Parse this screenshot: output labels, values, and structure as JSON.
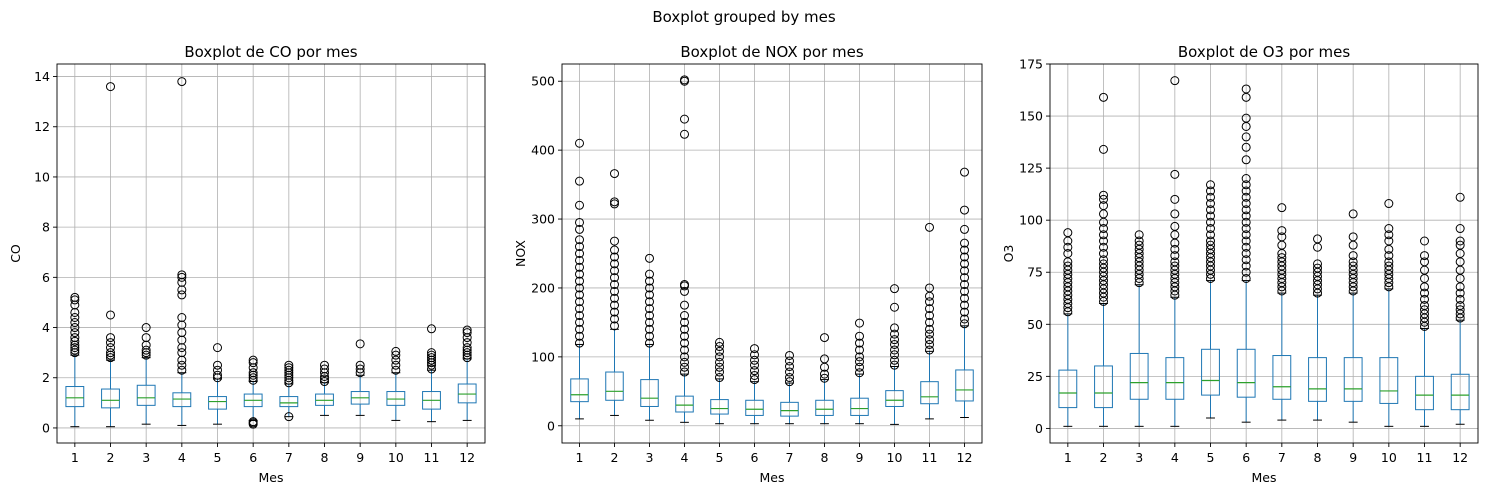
{
  "suptitle": "Boxplot grouped by mes",
  "colors": {
    "box": "#1f77b4",
    "median": "#2ca02c",
    "grid": "#b0b0b0",
    "axes": "#000000"
  },
  "chart_data": [
    {
      "type": "boxplot",
      "title": "Boxplot de CO por mes",
      "xlabel": "Mes",
      "ylabel": "CO",
      "categories": [
        "1",
        "2",
        "3",
        "4",
        "5",
        "6",
        "7",
        "8",
        "9",
        "10",
        "11",
        "12"
      ],
      "ylim": [
        -0.6,
        14.5
      ],
      "yticks": [
        0,
        2,
        4,
        6,
        8,
        10,
        12,
        14
      ],
      "grid": true,
      "boxes": [
        {
          "whislo": 0.05,
          "q1": 0.85,
          "med": 1.2,
          "q3": 1.65,
          "whishi": 2.9,
          "fliers": [
            3.0,
            3.1,
            3.2,
            3.3,
            3.45,
            3.6,
            3.8,
            4.0,
            4.2,
            4.4,
            4.6,
            4.9,
            5.1,
            5.2
          ]
        },
        {
          "whislo": 0.05,
          "q1": 0.8,
          "med": 1.1,
          "q3": 1.55,
          "whishi": 2.7,
          "fliers": [
            2.8,
            2.9,
            3.0,
            3.2,
            3.4,
            3.6,
            4.5,
            13.6
          ]
        },
        {
          "whislo": 0.15,
          "q1": 0.9,
          "med": 1.2,
          "q3": 1.7,
          "whishi": 2.8,
          "fliers": [
            2.9,
            3.0,
            3.1,
            3.3,
            3.6,
            4.0
          ]
        },
        {
          "whislo": 0.1,
          "q1": 0.85,
          "med": 1.15,
          "q3": 1.4,
          "whishi": 2.2,
          "fliers": [
            2.3,
            2.5,
            2.7,
            3.0,
            3.2,
            3.5,
            3.8,
            4.1,
            4.4,
            5.3,
            5.5,
            5.8,
            6.0,
            6.1,
            13.8
          ]
        },
        {
          "whislo": 0.15,
          "q1": 0.75,
          "med": 1.05,
          "q3": 1.25,
          "whishi": 1.95,
          "fliers": [
            2.0,
            2.1,
            2.3,
            2.5,
            3.2
          ]
        },
        {
          "whislo": 0.3,
          "q1": 0.85,
          "med": 1.1,
          "q3": 1.35,
          "whishi": 1.85,
          "fliers": [
            0.15,
            0.2,
            0.25,
            1.9,
            2.0,
            2.1,
            2.2,
            2.4,
            2.6,
            2.7
          ]
        },
        {
          "whislo": 0.45,
          "q1": 0.85,
          "med": 1.0,
          "q3": 1.25,
          "whishi": 1.75,
          "fliers": [
            0.45,
            1.8,
            1.9,
            2.0,
            2.1,
            2.2,
            2.3,
            2.4,
            2.5
          ]
        },
        {
          "whislo": 0.5,
          "q1": 0.9,
          "med": 1.1,
          "q3": 1.35,
          "whishi": 1.8,
          "fliers": [
            1.85,
            1.95,
            2.05,
            2.2,
            2.35,
            2.5
          ]
        },
        {
          "whislo": 0.5,
          "q1": 0.95,
          "med": 1.2,
          "q3": 1.45,
          "whishi": 2.1,
          "fliers": [
            2.2,
            2.35,
            2.5,
            3.35
          ]
        },
        {
          "whislo": 0.3,
          "q1": 0.9,
          "med": 1.15,
          "q3": 1.45,
          "whishi": 2.2,
          "fliers": [
            2.3,
            2.5,
            2.7,
            2.9,
            3.05
          ]
        },
        {
          "whislo": 0.25,
          "q1": 0.75,
          "med": 1.1,
          "q3": 1.45,
          "whishi": 2.3,
          "fliers": [
            2.35,
            2.5,
            2.6,
            2.7,
            2.8,
            2.9,
            3.0,
            3.95
          ]
        },
        {
          "whislo": 0.3,
          "q1": 1.0,
          "med": 1.35,
          "q3": 1.75,
          "whishi": 2.75,
          "fliers": [
            2.8,
            2.9,
            3.0,
            3.1,
            3.2,
            3.4,
            3.6,
            3.8,
            3.9
          ]
        }
      ]
    },
    {
      "type": "boxplot",
      "title": "Boxplot de NOX por mes",
      "xlabel": "Mes",
      "ylabel": "NOX",
      "categories": [
        "1",
        "2",
        "3",
        "4",
        "5",
        "6",
        "7",
        "8",
        "9",
        "10",
        "11",
        "12"
      ],
      "ylim": [
        -25,
        525
      ],
      "yticks": [
        0,
        100,
        200,
        300,
        400,
        500
      ],
      "grid": true,
      "boxes": [
        {
          "whislo": 10,
          "q1": 35,
          "med": 45,
          "q3": 68,
          "whishi": 118,
          "fliers": [
            120,
            130,
            140,
            150,
            160,
            170,
            180,
            190,
            200,
            210,
            220,
            230,
            240,
            250,
            260,
            270,
            285,
            295,
            320,
            355,
            410
          ]
        },
        {
          "whislo": 15,
          "q1": 37,
          "med": 50,
          "q3": 78,
          "whishi": 140,
          "fliers": [
            145,
            155,
            165,
            175,
            185,
            195,
            205,
            215,
            225,
            235,
            245,
            255,
            268,
            322,
            325,
            366
          ]
        },
        {
          "whislo": 8,
          "q1": 28,
          "med": 40,
          "q3": 67,
          "whishi": 118,
          "fliers": [
            120,
            130,
            140,
            150,
            160,
            170,
            180,
            190,
            200,
            210,
            220,
            243
          ]
        },
        {
          "whislo": 5,
          "q1": 20,
          "med": 30,
          "q3": 43,
          "whishi": 75,
          "fliers": [
            78,
            85,
            92,
            100,
            110,
            120,
            130,
            140,
            150,
            160,
            175,
            195,
            203,
            205,
            423,
            445,
            500,
            502
          ]
        },
        {
          "whislo": 3,
          "q1": 17,
          "med": 25,
          "q3": 38,
          "whishi": 68,
          "fliers": [
            70,
            78,
            85,
            92,
            100,
            108,
            115,
            121
          ]
        },
        {
          "whislo": 3,
          "q1": 15,
          "med": 24,
          "q3": 37,
          "whishi": 64,
          "fliers": [
            67,
            73,
            80,
            88,
            95,
            103,
            112
          ]
        },
        {
          "whislo": 3,
          "q1": 14,
          "med": 22,
          "q3": 34,
          "whishi": 62,
          "fliers": [
            64,
            70,
            78,
            86,
            94,
            102
          ]
        },
        {
          "whislo": 3,
          "q1": 15,
          "med": 24,
          "q3": 37,
          "whishi": 67,
          "fliers": [
            69,
            75,
            85,
            97,
            128
          ]
        },
        {
          "whislo": 3,
          "q1": 15,
          "med": 25,
          "q3": 40,
          "whishi": 75,
          "fliers": [
            77,
            85,
            93,
            100,
            110,
            120,
            130,
            149
          ]
        },
        {
          "whislo": 2,
          "q1": 28,
          "med": 37,
          "q3": 51,
          "whishi": 86,
          "fliers": [
            88,
            95,
            103,
            110,
            118,
            125,
            133,
            142,
            172,
            199
          ]
        },
        {
          "whislo": 10,
          "q1": 32,
          "med": 42,
          "q3": 64,
          "whishi": 108,
          "fliers": [
            110,
            118,
            125,
            133,
            140,
            150,
            160,
            170,
            180,
            188,
            200,
            288
          ]
        },
        {
          "whislo": 12,
          "q1": 36,
          "med": 52,
          "q3": 81,
          "whishi": 145,
          "fliers": [
            148,
            155,
            165,
            175,
            185,
            195,
            205,
            215,
            225,
            235,
            245,
            255,
            265,
            285,
            313,
            368
          ]
        }
      ]
    },
    {
      "type": "boxplot",
      "title": "Boxplot de O3 por mes",
      "xlabel": "Mes",
      "ylabel": "O3",
      "categories": [
        "1",
        "2",
        "3",
        "4",
        "5",
        "6",
        "7",
        "8",
        "9",
        "10",
        "11",
        "12"
      ],
      "ylim": [
        -7,
        175
      ],
      "yticks": [
        0,
        25,
        50,
        75,
        100,
        125,
        150,
        175
      ],
      "grid": true,
      "boxes": [
        {
          "whislo": 1,
          "q1": 10,
          "med": 17,
          "q3": 28,
          "whishi": 55,
          "fliers": [
            56,
            58,
            60,
            62,
            64,
            66,
            68,
            70,
            72,
            74,
            76,
            78,
            80,
            84,
            87,
            90,
            94
          ]
        },
        {
          "whislo": 1,
          "q1": 10,
          "med": 17,
          "q3": 30,
          "whishi": 60,
          "fliers": [
            61,
            63,
            65,
            67,
            69,
            71,
            73,
            75,
            77,
            79,
            81,
            84,
            87,
            90,
            93,
            96,
            99,
            103,
            107,
            110,
            112,
            134,
            159
          ]
        },
        {
          "whislo": 1,
          "q1": 14,
          "med": 22,
          "q3": 36,
          "whishi": 69,
          "fliers": [
            70,
            72,
            74,
            76,
            78,
            80,
            82,
            84,
            86,
            88,
            90,
            93
          ]
        },
        {
          "whislo": 1,
          "q1": 14,
          "med": 22,
          "q3": 34,
          "whishi": 63,
          "fliers": [
            64,
            66,
            68,
            70,
            72,
            74,
            76,
            78,
            80,
            83,
            86,
            89,
            93,
            97,
            103,
            110,
            122,
            167
          ]
        },
        {
          "whislo": 5,
          "q1": 16,
          "med": 23,
          "q3": 38,
          "whishi": 71,
          "fliers": [
            72,
            74,
            76,
            78,
            80,
            82,
            84,
            86,
            88,
            90,
            93,
            96,
            99,
            102,
            105,
            108,
            111,
            114,
            117
          ]
        },
        {
          "whislo": 3,
          "q1": 15,
          "med": 22,
          "q3": 38,
          "whishi": 71,
          "fliers": [
            72,
            75,
            78,
            81,
            84,
            87,
            90,
            93,
            96,
            99,
            102,
            105,
            108,
            111,
            114,
            117,
            120,
            129,
            135,
            140,
            145,
            149,
            159,
            163
          ]
        },
        {
          "whislo": 4,
          "q1": 14,
          "med": 20,
          "q3": 35,
          "whishi": 65,
          "fliers": [
            66,
            68,
            70,
            72,
            74,
            76,
            78,
            80,
            82,
            84,
            88,
            92,
            95,
            106
          ]
        },
        {
          "whislo": 4,
          "q1": 13,
          "med": 19,
          "q3": 34,
          "whishi": 64,
          "fliers": [
            65,
            67,
            69,
            71,
            73,
            75,
            77,
            79,
            87,
            91
          ]
        },
        {
          "whislo": 3,
          "q1": 13,
          "med": 19,
          "q3": 34,
          "whishi": 65,
          "fliers": [
            66,
            68,
            70,
            72,
            74,
            76,
            78,
            80,
            83,
            88,
            92,
            103
          ]
        },
        {
          "whislo": 1,
          "q1": 12,
          "med": 18,
          "q3": 34,
          "whishi": 67,
          "fliers": [
            68,
            70,
            72,
            74,
            76,
            78,
            80,
            83,
            86,
            90,
            93,
            96,
            108
          ]
        },
        {
          "whislo": 1,
          "q1": 9,
          "med": 16,
          "q3": 25,
          "whishi": 48,
          "fliers": [
            49,
            51,
            53,
            55,
            57,
            59,
            62,
            65,
            68,
            72,
            76,
            80,
            83,
            90
          ]
        },
        {
          "whislo": 2,
          "q1": 9,
          "med": 16,
          "q3": 26,
          "whishi": 52,
          "fliers": [
            53,
            55,
            57,
            59,
            62,
            65,
            68,
            72,
            76,
            80,
            84,
            88,
            90,
            96,
            111
          ]
        }
      ]
    }
  ]
}
